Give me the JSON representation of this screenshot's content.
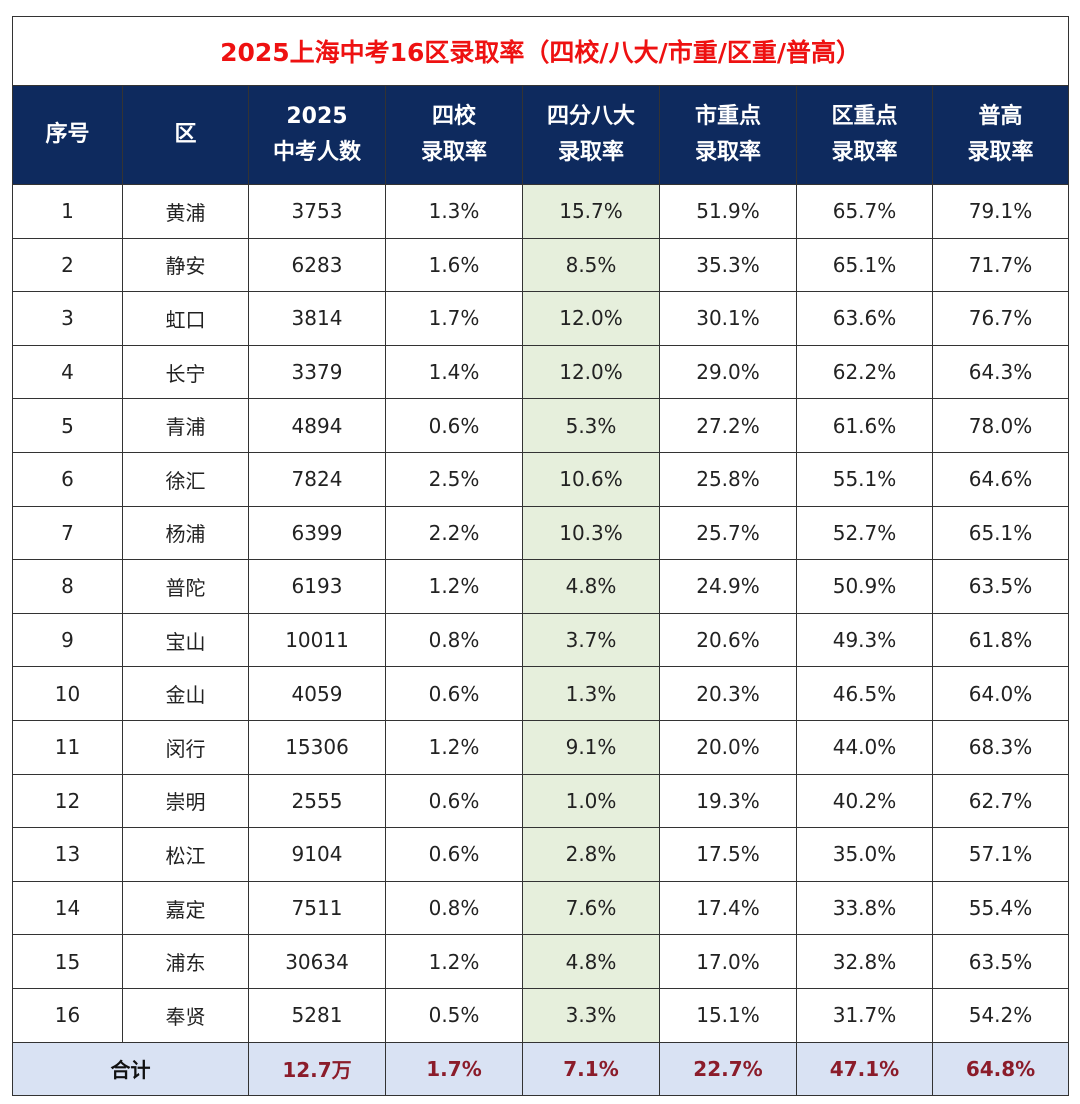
{
  "chart_data": {
    "type": "table",
    "title": "2025上海中考16区录取率（四校/八大/市重/区重/普高）",
    "columns": [
      {
        "key": "no",
        "lines": [
          "序号"
        ]
      },
      {
        "key": "district",
        "lines": [
          "区"
        ]
      },
      {
        "key": "examinees",
        "lines": [
          "2025",
          "中考人数"
        ]
      },
      {
        "key": "four_schools",
        "lines": [
          "四校",
          "录取率"
        ]
      },
      {
        "key": "eight_big",
        "lines": [
          "四分八大",
          "录取率"
        ]
      },
      {
        "key": "city_key",
        "lines": [
          "市重点",
          "录取率"
        ]
      },
      {
        "key": "district_key",
        "lines": [
          "区重点",
          "录取率"
        ]
      },
      {
        "key": "general_high",
        "lines": [
          "普高",
          "录取率"
        ]
      }
    ],
    "highlight_column": "eight_big",
    "highlight_color": "#e6efdc",
    "header_color": "#0e2a5e",
    "title_color": "#ee1111",
    "total_color": "#8b1c2a",
    "total_bg": "#d9e2f3",
    "rows": [
      [
        "1",
        "黄浦",
        "3753",
        "1.3%",
        "15.7%",
        "51.9%",
        "65.7%",
        "79.1%"
      ],
      [
        "2",
        "静安",
        "6283",
        "1.6%",
        "8.5%",
        "35.3%",
        "65.1%",
        "71.7%"
      ],
      [
        "3",
        "虹口",
        "3814",
        "1.7%",
        "12.0%",
        "30.1%",
        "63.6%",
        "76.7%"
      ],
      [
        "4",
        "长宁",
        "3379",
        "1.4%",
        "12.0%",
        "29.0%",
        "62.2%",
        "64.3%"
      ],
      [
        "5",
        "青浦",
        "4894",
        "0.6%",
        "5.3%",
        "27.2%",
        "61.6%",
        "78.0%"
      ],
      [
        "6",
        "徐汇",
        "7824",
        "2.5%",
        "10.6%",
        "25.8%",
        "55.1%",
        "64.6%"
      ],
      [
        "7",
        "杨浦",
        "6399",
        "2.2%",
        "10.3%",
        "25.7%",
        "52.7%",
        "65.1%"
      ],
      [
        "8",
        "普陀",
        "6193",
        "1.2%",
        "4.8%",
        "24.9%",
        "50.9%",
        "63.5%"
      ],
      [
        "9",
        "宝山",
        "10011",
        "0.8%",
        "3.7%",
        "20.6%",
        "49.3%",
        "61.8%"
      ],
      [
        "10",
        "金山",
        "4059",
        "0.6%",
        "1.3%",
        "20.3%",
        "46.5%",
        "64.0%"
      ],
      [
        "11",
        "闵行",
        "15306",
        "1.2%",
        "9.1%",
        "20.0%",
        "44.0%",
        "68.3%"
      ],
      [
        "12",
        "崇明",
        "2555",
        "0.6%",
        "1.0%",
        "19.3%",
        "40.2%",
        "62.7%"
      ],
      [
        "13",
        "松江",
        "9104",
        "0.6%",
        "2.8%",
        "17.5%",
        "35.0%",
        "57.1%"
      ],
      [
        "14",
        "嘉定",
        "7511",
        "0.8%",
        "7.6%",
        "17.4%",
        "33.8%",
        "55.4%"
      ],
      [
        "15",
        "浦东",
        "30634",
        "1.2%",
        "4.8%",
        "17.0%",
        "32.8%",
        "63.5%"
      ],
      [
        "16",
        "奉贤",
        "5281",
        "0.5%",
        "3.3%",
        "15.1%",
        "31.7%",
        "54.2%"
      ]
    ],
    "total": {
      "label": "合计",
      "values": [
        "12.7万",
        "1.7%",
        "7.1%",
        "22.7%",
        "47.1%",
        "64.8%"
      ]
    }
  }
}
